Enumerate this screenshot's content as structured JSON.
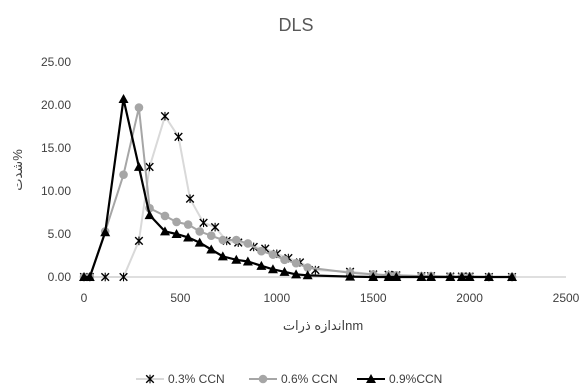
{
  "chart_data": {
    "type": "scatter",
    "title": "DLS",
    "xlabel": "اندازه ذراتnm",
    "ylabel": "شدت%",
    "xlim": [
      0,
      2500
    ],
    "ylim": [
      0,
      25
    ],
    "x_ticks": [
      "0",
      "500",
      "1000",
      "1500",
      "2000",
      "2500"
    ],
    "y_ticks": [
      "0.00",
      "5.00",
      "10.00",
      "15.00",
      "20.00",
      "25.00"
    ],
    "grid": "none",
    "legend_position": "bottom",
    "series": [
      {
        "name": "0.3% CCN",
        "color": "#d9d9d9",
        "marker": "x",
        "x": [
          0,
          30,
          110,
          205,
          285,
          340,
          420,
          490,
          550,
          620,
          680,
          740,
          800,
          880,
          940,
          1000,
          1060,
          1120,
          1200,
          1380,
          1500,
          1580,
          1620,
          1750,
          1800,
          1900,
          1960,
          2000,
          2100,
          2220
        ],
        "y": [
          0,
          0,
          0,
          0,
          4.2,
          12.8,
          18.7,
          16.3,
          9.1,
          6.3,
          5.8,
          4.2,
          4.0,
          3.5,
          3.3,
          2.7,
          2.2,
          1.7,
          0.8,
          0.6,
          0.3,
          0.25,
          0.2,
          0.1,
          0.1,
          0.05,
          0.05,
          0.05,
          0,
          0
        ]
      },
      {
        "name": "0.6% CCN",
        "color": "#a6a6a6",
        "marker": "circle",
        "x": [
          0,
          30,
          110,
          205,
          285,
          340,
          420,
          480,
          540,
          600,
          660,
          720,
          790,
          850,
          920,
          980,
          1040,
          1100,
          1160,
          1380,
          1500,
          1580,
          1620,
          1750,
          1800,
          1900,
          1960,
          2000,
          2100,
          2220
        ],
        "y": [
          0,
          0,
          5.3,
          11.9,
          19.7,
          8.0,
          7.1,
          6.4,
          6.1,
          5.3,
          4.8,
          4.3,
          4.3,
          3.9,
          3.0,
          2.6,
          2.0,
          1.6,
          1.1,
          0.5,
          0.3,
          0.2,
          0.2,
          0.1,
          0.1,
          0.05,
          0.05,
          0.05,
          0,
          0
        ]
      },
      {
        "name": "0.9%CCN",
        "color": "#000000",
        "marker": "triangle",
        "x": [
          0,
          30,
          110,
          205,
          285,
          340,
          420,
          480,
          540,
          600,
          660,
          720,
          790,
          850,
          920,
          980,
          1040,
          1100,
          1160,
          1380,
          1500,
          1580,
          1620,
          1750,
          1800,
          1900,
          1960,
          2000,
          2100,
          2220
        ],
        "y": [
          0,
          0,
          5.2,
          20.7,
          12.8,
          7.2,
          5.3,
          5.0,
          4.6,
          4.0,
          3.2,
          2.4,
          2.0,
          1.8,
          1.3,
          0.9,
          0.6,
          0.3,
          0.2,
          0.05,
          0,
          0,
          0,
          0,
          0,
          0,
          0,
          0,
          0,
          0
        ]
      }
    ]
  }
}
